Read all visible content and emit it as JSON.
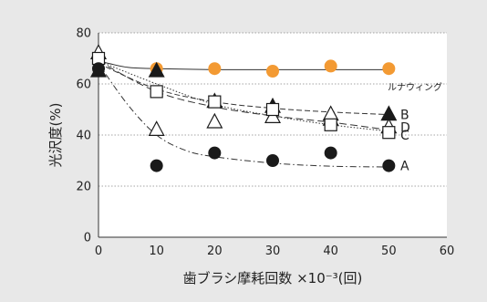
{
  "chart_data": {
    "type": "scatter",
    "xlabel": "歯ブラシ摩耗回数 ×10⁻³(回)",
    "ylabel": "光沢度(%)",
    "xlim": [
      0,
      60
    ],
    "ylim": [
      0,
      80
    ],
    "x_ticks": [
      "0",
      "10",
      "20",
      "30",
      "40",
      "50",
      "60"
    ],
    "y_ticks": [
      "0",
      "20",
      "40",
      "60",
      "80"
    ],
    "grid": "horizontal-dotted",
    "series": [
      {
        "name": "ルナウィング",
        "marker": "circle-filled",
        "color": "#f39a33",
        "line": "solid",
        "x": [
          0,
          10,
          20,
          30,
          40,
          50
        ],
        "y": [
          69,
          66,
          66,
          65,
          67,
          66
        ],
        "curve": [
          [
            0,
            69
          ],
          [
            5,
            66.5
          ],
          [
            10,
            66
          ],
          [
            20,
            65.6
          ],
          [
            30,
            65.6
          ],
          [
            40,
            65.6
          ],
          [
            50,
            65.6
          ]
        ]
      },
      {
        "name": "B",
        "marker": "triangle-filled",
        "color": "#1a1a1a",
        "line": "dashed",
        "x": [
          0,
          10,
          20,
          30,
          40,
          50
        ],
        "y": [
          65,
          65,
          53,
          51,
          46,
          48
        ],
        "curve": [
          [
            0,
            68
          ],
          [
            10,
            58
          ],
          [
            20,
            53
          ],
          [
            30,
            50.5
          ],
          [
            40,
            49
          ],
          [
            50,
            48
          ]
        ]
      },
      {
        "name": "D",
        "marker": "triangle-open",
        "color": "#1a1a1a",
        "line": "dotted",
        "x": [
          0,
          10,
          20,
          30,
          40,
          50
        ],
        "y": [
          72,
          42,
          45,
          47,
          48,
          43
        ],
        "curve": [
          [
            0,
            69
          ],
          [
            10,
            60
          ],
          [
            20,
            52
          ],
          [
            30,
            47.5
          ],
          [
            40,
            44
          ],
          [
            50,
            41.5
          ]
        ]
      },
      {
        "name": "C",
        "marker": "square-open",
        "color": "#1a1a1a",
        "line": "dashed-long",
        "x": [
          0,
          10,
          20,
          30,
          40,
          50
        ],
        "y": [
          70,
          57,
          53,
          50,
          44,
          41
        ],
        "curve": [
          [
            0,
            69
          ],
          [
            10,
            57
          ],
          [
            20,
            51
          ],
          [
            30,
            47.5
          ],
          [
            40,
            45
          ],
          [
            50,
            42
          ]
        ]
      },
      {
        "name": "A",
        "marker": "circle-filled",
        "color": "#1a1a1a",
        "line": "dash-dot",
        "x": [
          0,
          10,
          20,
          30,
          40,
          50
        ],
        "y": [
          66,
          28,
          33,
          30,
          33,
          28
        ],
        "curve": [
          [
            0,
            68
          ],
          [
            5,
            52
          ],
          [
            10,
            40
          ],
          [
            15,
            34
          ],
          [
            20,
            31.5
          ],
          [
            30,
            29
          ],
          [
            40,
            27.8
          ],
          [
            50,
            27.5
          ]
        ]
      }
    ]
  }
}
